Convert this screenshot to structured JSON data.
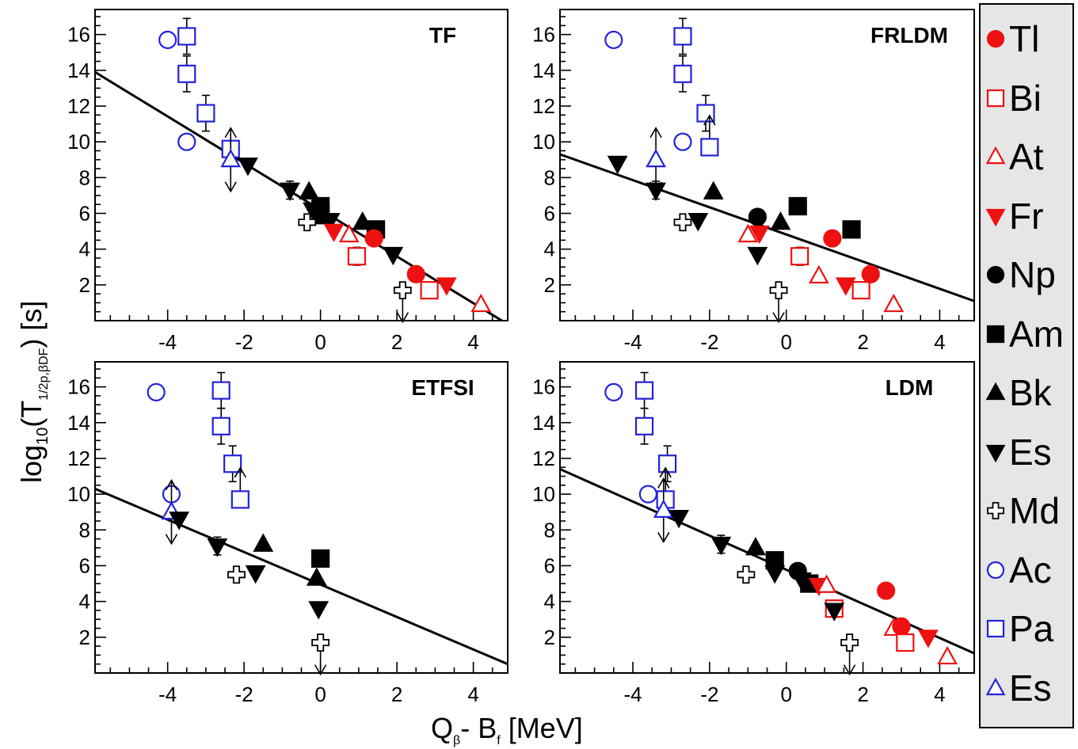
{
  "figure": {
    "ylabel_main": "log",
    "ylabel_sub10": "10",
    "ylabel_T": "(T",
    "ylabel_sub": "1/2p,βDF",
    "ylabel_tail": ") [s]",
    "xlabel_Q": "Q",
    "xlabel_subb": "β",
    "xlabel_mid": "- B",
    "xlabel_subf": "f",
    "xlabel_tail": " [MeV]"
  },
  "legend": {
    "items": [
      {
        "label": "Tl",
        "marker": "circle-filled",
        "color": "#ee1111"
      },
      {
        "label": "Bi",
        "marker": "square-open",
        "color": "#ee1111"
      },
      {
        "label": "At",
        "marker": "triangle-up-open",
        "color": "#ee1111"
      },
      {
        "label": "Fr",
        "marker": "triangle-down-filled",
        "color": "#ee1111"
      },
      {
        "label": "Np",
        "marker": "circle-filled",
        "color": "#000000"
      },
      {
        "label": "Am",
        "marker": "square-filled",
        "color": "#000000"
      },
      {
        "label": "Bk",
        "marker": "triangle-up-filled",
        "color": "#000000"
      },
      {
        "label": "Es",
        "marker": "triangle-down-filled",
        "color": "#000000"
      },
      {
        "label": "Md",
        "marker": "cross-open",
        "color": "#000000"
      },
      {
        "label": "Ac",
        "marker": "circle-open",
        "color": "#2222dd"
      },
      {
        "label": "Pa",
        "marker": "square-open",
        "color": "#2222dd"
      },
      {
        "label": "Es",
        "marker": "triangle-up-open",
        "color": "#2222dd"
      }
    ]
  },
  "chart_data": [
    {
      "type": "scatter",
      "title": "TF",
      "xlim": [
        -5.9,
        4.9
      ],
      "ylim": [
        0,
        17.4
      ],
      "xticks": [
        -4,
        -2,
        0,
        2,
        4
      ],
      "yticks": [
        2,
        4,
        6,
        8,
        10,
        12,
        14,
        16
      ],
      "fit_line": [
        [
          -5.9,
          13.9
        ],
        [
          4.75,
          0
        ]
      ],
      "points": [
        {
          "s": "Ac",
          "x": -4.0,
          "y": 15.7
        },
        {
          "s": "Pa",
          "x": -3.5,
          "y": 15.9,
          "err": 1.0
        },
        {
          "s": "Pa",
          "x": -3.5,
          "y": 13.8,
          "err": 1.0
        },
        {
          "s": "Ac",
          "x": -3.5,
          "y": 10.0
        },
        {
          "s": "Pa",
          "x": -3.0,
          "y": 11.6,
          "err": 1.0
        },
        {
          "s": "Pa",
          "x": -2.35,
          "y": 9.6
        },
        {
          "s": "Es2",
          "x": -2.35,
          "y": 9.0,
          "arrow": "both"
        },
        {
          "s": "Es",
          "x": -1.9,
          "y": 8.7
        },
        {
          "s": "Es",
          "x": -0.8,
          "y": 7.3,
          "err": 0.5
        },
        {
          "s": "Bk",
          "x": -0.3,
          "y": 7.2
        },
        {
          "s": "Es",
          "x": -0.2,
          "y": 6.2
        },
        {
          "s": "Am",
          "x": 0.0,
          "y": 6.4
        },
        {
          "s": "Am",
          "x": 0.0,
          "y": 5.9
        },
        {
          "s": "Md",
          "x": -0.35,
          "y": 5.5
        },
        {
          "s": "Es",
          "x": 0.25,
          "y": 5.6
        },
        {
          "s": "Fr",
          "x": 0.35,
          "y": 5.0
        },
        {
          "s": "At",
          "x": 0.75,
          "y": 4.8
        },
        {
          "s": "Bk",
          "x": 1.1,
          "y": 5.5
        },
        {
          "s": "Am",
          "x": 1.45,
          "y": 5.1
        },
        {
          "s": "Tl",
          "x": 1.4,
          "y": 4.6
        },
        {
          "s": "Bi",
          "x": 0.95,
          "y": 3.6,
          "err": 0.5
        },
        {
          "s": "Es",
          "x": 1.9,
          "y": 3.7
        },
        {
          "s": "Md",
          "x": 2.15,
          "y": 1.7,
          "arrow": "down"
        },
        {
          "s": "Tl",
          "x": 2.5,
          "y": 2.6
        },
        {
          "s": "Bi",
          "x": 2.85,
          "y": 1.7
        },
        {
          "s": "Fr",
          "x": 3.3,
          "y": 2.0
        },
        {
          "s": "At",
          "x": 4.2,
          "y": 0.9
        }
      ]
    },
    {
      "type": "scatter",
      "title": "FRLDM",
      "xlim": [
        -5.9,
        4.9
      ],
      "ylim": [
        0,
        17.4
      ],
      "xticks": [
        -4,
        -2,
        0,
        2,
        4
      ],
      "yticks": [
        2,
        4,
        6,
        8,
        10,
        12,
        14,
        16
      ],
      "fit_line": [
        [
          -5.9,
          9.3
        ],
        [
          4.9,
          1.1
        ]
      ],
      "points": [
        {
          "s": "Ac",
          "x": -4.5,
          "y": 15.7
        },
        {
          "s": "Pa",
          "x": -2.7,
          "y": 15.9,
          "err": 1.0
        },
        {
          "s": "Pa",
          "x": -2.7,
          "y": 13.8,
          "err": 1.0
        },
        {
          "s": "Pa",
          "x": -2.1,
          "y": 11.6,
          "err": 1.0
        },
        {
          "s": "Ac",
          "x": -2.7,
          "y": 10.0
        },
        {
          "s": "Pa",
          "x": -2.0,
          "y": 9.7,
          "arrow": "up"
        },
        {
          "s": "Es2",
          "x": -3.4,
          "y": 9.0,
          "arrow": "both"
        },
        {
          "s": "Es",
          "x": -4.4,
          "y": 8.8
        },
        {
          "s": "Es",
          "x": -3.4,
          "y": 7.3,
          "err": 0.5
        },
        {
          "s": "Bk",
          "x": -1.9,
          "y": 7.2
        },
        {
          "s": "Es",
          "x": -2.3,
          "y": 5.6
        },
        {
          "s": "Md",
          "x": -2.7,
          "y": 5.5
        },
        {
          "s": "Np",
          "x": -0.75,
          "y": 5.8
        },
        {
          "s": "Bk",
          "x": -0.15,
          "y": 5.5
        },
        {
          "s": "Am",
          "x": 0.3,
          "y": 6.4
        },
        {
          "s": "At",
          "x": -1.0,
          "y": 4.8
        },
        {
          "s": "Fr",
          "x": -0.7,
          "y": 4.9
        },
        {
          "s": "Es",
          "x": -0.75,
          "y": 3.7
        },
        {
          "s": "Bi",
          "x": 0.35,
          "y": 3.6,
          "err": 0.5
        },
        {
          "s": "Tl",
          "x": 1.2,
          "y": 4.6
        },
        {
          "s": "Am",
          "x": 1.7,
          "y": 5.1
        },
        {
          "s": "Md",
          "x": -0.2,
          "y": 1.7,
          "arrow": "down"
        },
        {
          "s": "At",
          "x": 0.85,
          "y": 2.5
        },
        {
          "s": "Fr",
          "x": 1.55,
          "y": 2.0
        },
        {
          "s": "Bi",
          "x": 1.95,
          "y": 1.7
        },
        {
          "s": "Tl",
          "x": 2.2,
          "y": 2.6
        },
        {
          "s": "At",
          "x": 2.8,
          "y": 0.9
        }
      ]
    },
    {
      "type": "scatter",
      "title": "ETFSI",
      "xlim": [
        -5.9,
        4.9
      ],
      "ylim": [
        0,
        17.4
      ],
      "xticks": [
        -4,
        -2,
        0,
        2,
        4
      ],
      "yticks": [
        2,
        4,
        6,
        8,
        10,
        12,
        14,
        16
      ],
      "fit_line": [
        [
          -5.9,
          10.3
        ],
        [
          4.9,
          0.5
        ]
      ],
      "points": [
        {
          "s": "Ac",
          "x": -4.3,
          "y": 15.7
        },
        {
          "s": "Pa",
          "x": -2.6,
          "y": 15.8,
          "err": 1.0
        },
        {
          "s": "Pa",
          "x": -2.6,
          "y": 13.8,
          "err": 1.0
        },
        {
          "s": "Pa",
          "x": -2.3,
          "y": 11.7,
          "err": 1.0
        },
        {
          "s": "Pa",
          "x": -2.1,
          "y": 9.7,
          "arrow": "up"
        },
        {
          "s": "Ac",
          "x": -3.9,
          "y": 10.0
        },
        {
          "s": "Es2",
          "x": -3.9,
          "y": 9.0,
          "arrow": "both"
        },
        {
          "s": "Es",
          "x": -3.7,
          "y": 8.6
        },
        {
          "s": "Es",
          "x": -2.7,
          "y": 7.1,
          "err": 0.5
        },
        {
          "s": "Bk",
          "x": -1.5,
          "y": 7.2
        },
        {
          "s": "Es",
          "x": -1.7,
          "y": 5.6
        },
        {
          "s": "Md",
          "x": -2.2,
          "y": 5.5
        },
        {
          "s": "Am",
          "x": 0.0,
          "y": 6.4
        },
        {
          "s": "Bk",
          "x": -0.1,
          "y": 5.3
        },
        {
          "s": "Es",
          "x": -0.05,
          "y": 3.6
        },
        {
          "s": "Md",
          "x": 0.0,
          "y": 1.7,
          "arrow": "down"
        }
      ]
    },
    {
      "type": "scatter",
      "title": "LDM",
      "xlim": [
        -5.9,
        4.9
      ],
      "ylim": [
        0,
        17.4
      ],
      "xticks": [
        -4,
        -2,
        0,
        2,
        4
      ],
      "yticks": [
        2,
        4,
        6,
        8,
        10,
        12,
        14,
        16
      ],
      "fit_line": [
        [
          -5.9,
          11.4
        ],
        [
          4.9,
          1.1
        ]
      ],
      "points": [
        {
          "s": "Ac",
          "x": -4.5,
          "y": 15.7
        },
        {
          "s": "Pa",
          "x": -3.7,
          "y": 15.8,
          "err": 1.0
        },
        {
          "s": "Pa",
          "x": -3.7,
          "y": 13.8,
          "err": 1.0
        },
        {
          "s": "Pa",
          "x": -3.1,
          "y": 11.7,
          "err": 1.0
        },
        {
          "s": "Ac",
          "x": -3.6,
          "y": 10.0
        },
        {
          "s": "Pa",
          "x": -3.15,
          "y": 9.7,
          "arrow": "up"
        },
        {
          "s": "Es2",
          "x": -3.2,
          "y": 9.1,
          "arrow": "both"
        },
        {
          "s": "Es",
          "x": -2.8,
          "y": 8.7
        },
        {
          "s": "Es",
          "x": -1.7,
          "y": 7.2,
          "err": 0.5
        },
        {
          "s": "Bk",
          "x": -0.8,
          "y": 7.0
        },
        {
          "s": "Md",
          "x": -1.05,
          "y": 5.5
        },
        {
          "s": "Am",
          "x": -0.3,
          "y": 6.3
        },
        {
          "s": "Es",
          "x": -0.3,
          "y": 5.6
        },
        {
          "s": "Np",
          "x": 0.3,
          "y": 5.7
        },
        {
          "s": "Es",
          "x": 0.4,
          "y": 5.2
        },
        {
          "s": "Am",
          "x": 0.6,
          "y": 5.0
        },
        {
          "s": "Fr",
          "x": 0.85,
          "y": 4.9
        },
        {
          "s": "At",
          "x": 1.05,
          "y": 4.9
        },
        {
          "s": "Bi",
          "x": 1.25,
          "y": 3.6
        },
        {
          "s": "Es",
          "x": 1.25,
          "y": 3.5
        },
        {
          "s": "Tl",
          "x": 2.6,
          "y": 4.6
        },
        {
          "s": "Md",
          "x": 1.65,
          "y": 1.7,
          "arrow": "down"
        },
        {
          "s": "At",
          "x": 2.8,
          "y": 2.5
        },
        {
          "s": "Tl",
          "x": 3.0,
          "y": 2.6
        },
        {
          "s": "Bi",
          "x": 3.1,
          "y": 1.7
        },
        {
          "s": "Fr",
          "x": 3.7,
          "y": 2.0
        },
        {
          "s": "At",
          "x": 4.2,
          "y": 0.9
        }
      ]
    }
  ]
}
